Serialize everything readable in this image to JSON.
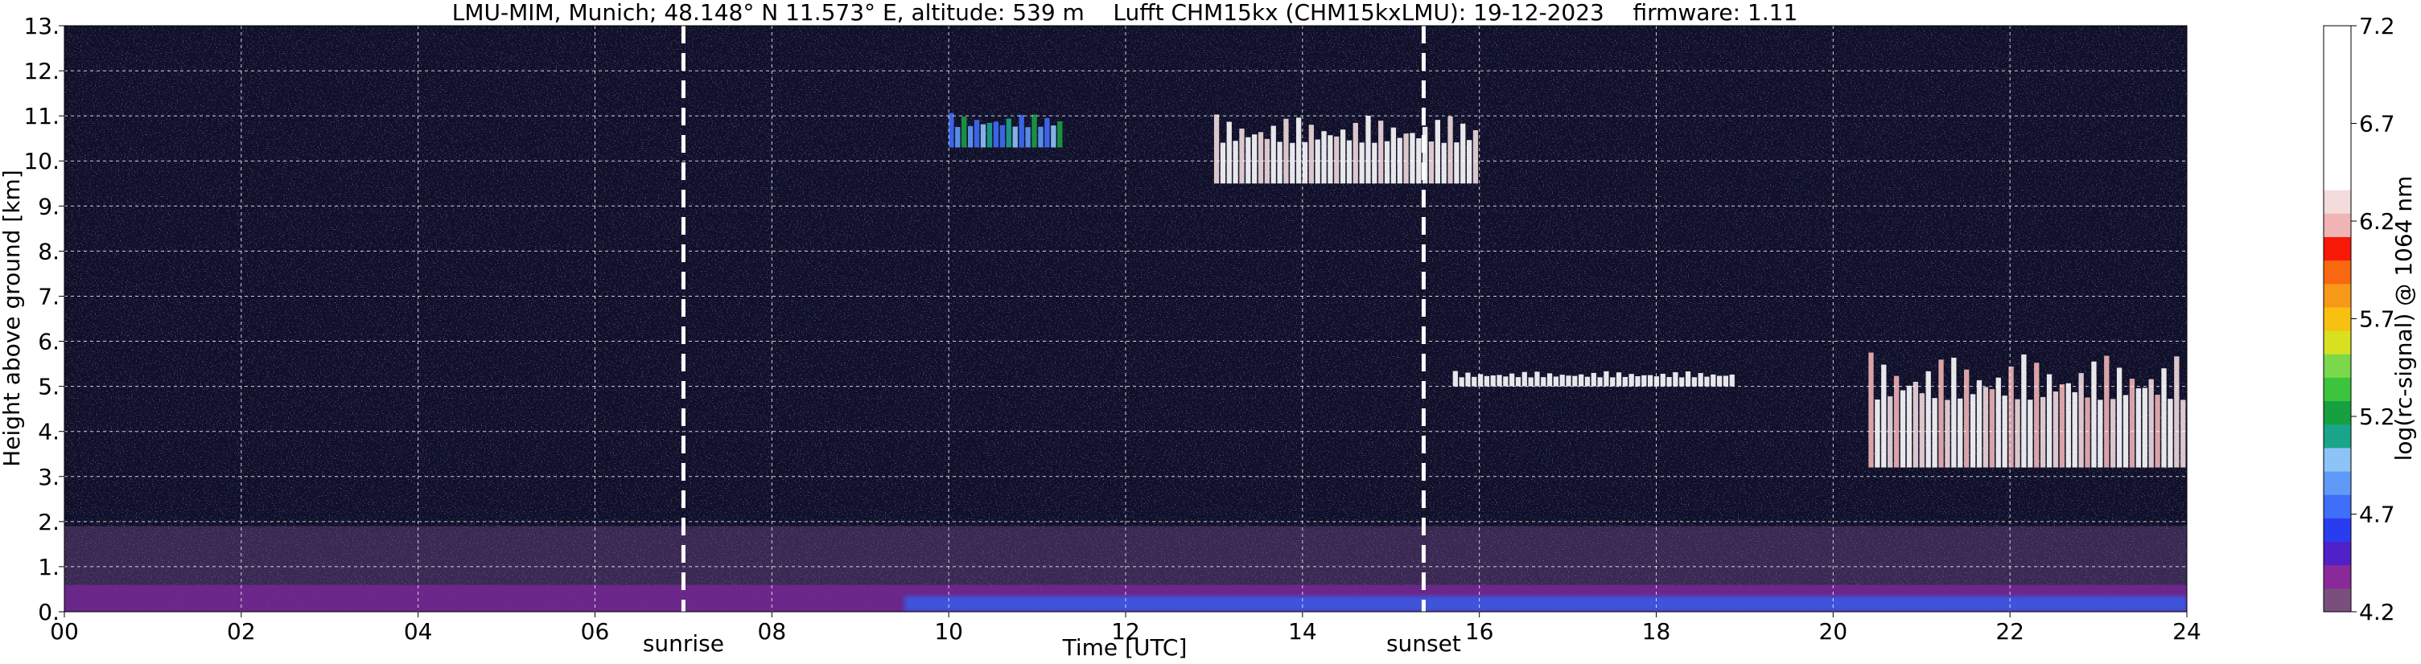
{
  "chart_data": {
    "type": "heatmap",
    "title": "LMU-MIM, Munich; 48.148° N 11.573° E, altitude: 539 m    Lufft CHM15kx (CHM15kxLMU): 19-12-2023    firmware: 1.11",
    "xlabel": "Time [UTC]",
    "ylabel": "Height above ground [km]",
    "xlim": [
      0,
      24
    ],
    "ylim": [
      0,
      13
    ],
    "x_ticks": [
      0,
      2,
      4,
      6,
      8,
      10,
      12,
      14,
      16,
      18,
      20,
      22,
      24
    ],
    "x_tick_labels": [
      "00",
      "02",
      "04",
      "06",
      "08",
      "10",
      "12",
      "14",
      "16",
      "18",
      "20",
      "22",
      "24"
    ],
    "y_ticks": [
      0,
      1,
      2,
      3,
      4,
      5,
      6,
      7,
      8,
      9,
      10,
      11,
      12,
      13
    ],
    "y_tick_labels": [
      "0.",
      "1.",
      "2.",
      "3.",
      "4.",
      "5.",
      "6.",
      "7.",
      "8.",
      "9.",
      "10.",
      "11.",
      "12.",
      "13."
    ],
    "grid": true,
    "annotations": [
      {
        "label": "sunrise",
        "x": 7.0
      },
      {
        "label": "sunset",
        "x": 15.37
      }
    ],
    "colorbar": {
      "label": "log(rc-signal) @ 1064 nm",
      "range": [
        4.2,
        7.2
      ],
      "ticks": [
        4.2,
        4.7,
        5.2,
        5.7,
        6.2,
        6.7,
        7.2
      ],
      "tick_labels": [
        "4.2",
        "4.7",
        "5.2",
        "5.7",
        "6.2",
        "6.7",
        "7.2"
      ]
    },
    "features": [
      {
        "kind": "aerosol_layer",
        "t0": 0,
        "t1": 24,
        "top_km": 0.6,
        "value": 4.5
      },
      {
        "kind": "boundary_layer",
        "t0": 0,
        "t1": 24,
        "top_km": 1.9,
        "value": 4.3
      },
      {
        "kind": "cirrus",
        "t0": 13.0,
        "t1": 16.0,
        "base_km": 9.5,
        "top_km": 11.3,
        "value": 6.9
      },
      {
        "kind": "cirrus",
        "t0": 10.0,
        "t1": 11.3,
        "base_km": 10.3,
        "top_km": 11.2,
        "value": 5.3
      },
      {
        "kind": "cloud",
        "t0": 15.7,
        "t1": 18.9,
        "base_km": 5.0,
        "top_km": 5.4,
        "value": 7.0
      },
      {
        "kind": "cloud",
        "t0": 20.4,
        "t1": 24.0,
        "base_km": 3.2,
        "top_km": 6.2,
        "value": 6.8
      }
    ]
  }
}
